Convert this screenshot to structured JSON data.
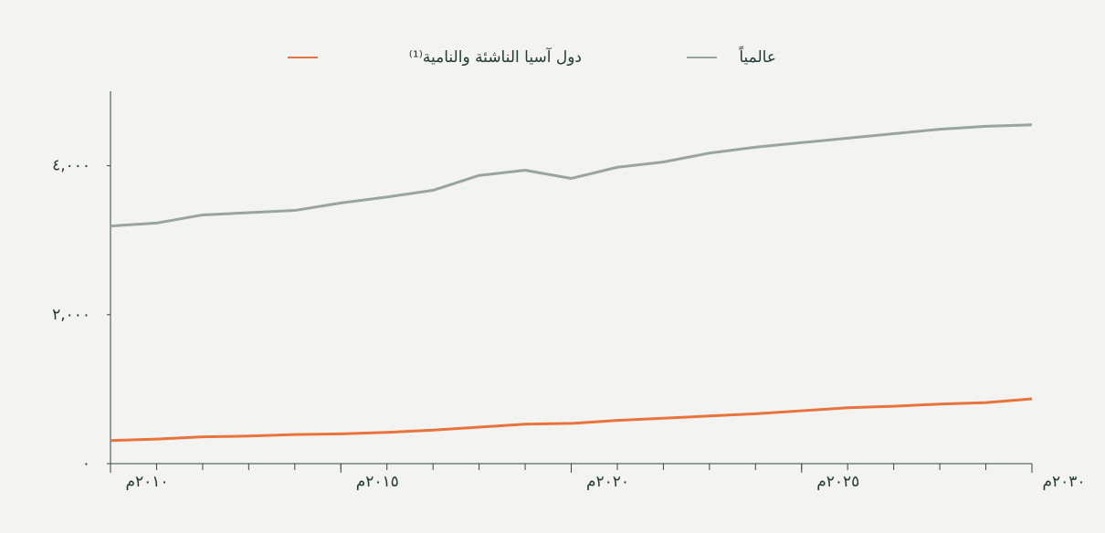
{
  "chart_data": {
    "type": "line",
    "x": [
      2010,
      2011,
      2012,
      2013,
      2014,
      2015,
      2016,
      2017,
      2018,
      2019,
      2020,
      2021,
      2022,
      2023,
      2024,
      2025,
      2026,
      2027,
      2028,
      2029,
      2030
    ],
    "series": [
      {
        "name": "عالمياً",
        "color": "#9aa59f",
        "values": [
          3190,
          3230,
          3340,
          3370,
          3400,
          3500,
          3580,
          3670,
          3870,
          3940,
          3830,
          3980,
          4050,
          4170,
          4250,
          4310,
          4370,
          4430,
          4490,
          4530,
          4550
        ]
      },
      {
        "name": "دول آسيا الناشئة والنامية⁽¹⁾",
        "color": "#e8743b",
        "values": [
          310,
          330,
          360,
          370,
          390,
          400,
          420,
          450,
          490,
          530,
          540,
          580,
          610,
          640,
          670,
          710,
          750,
          770,
          800,
          820,
          870
        ]
      }
    ],
    "xlim": [
      2010,
      2030
    ],
    "xticks": [
      {
        "value": 2010,
        "label": "٢٠١٠م"
      },
      {
        "value": 2015,
        "label": "٢٠١٥م"
      },
      {
        "value": 2020,
        "label": "٢٠٢٠م"
      },
      {
        "value": 2025,
        "label": "٢٠٢٥م"
      },
      {
        "value": 2030,
        "label": "٢٠٣٠م"
      }
    ],
    "ylim": [
      0,
      5000
    ],
    "yticks": [
      {
        "value": 0,
        "label": "٠"
      },
      {
        "value": 2000,
        "label": "٢,٠٠٠"
      },
      {
        "value": 4000,
        "label": "٤,٠٠٠"
      }
    ],
    "grid": false
  }
}
